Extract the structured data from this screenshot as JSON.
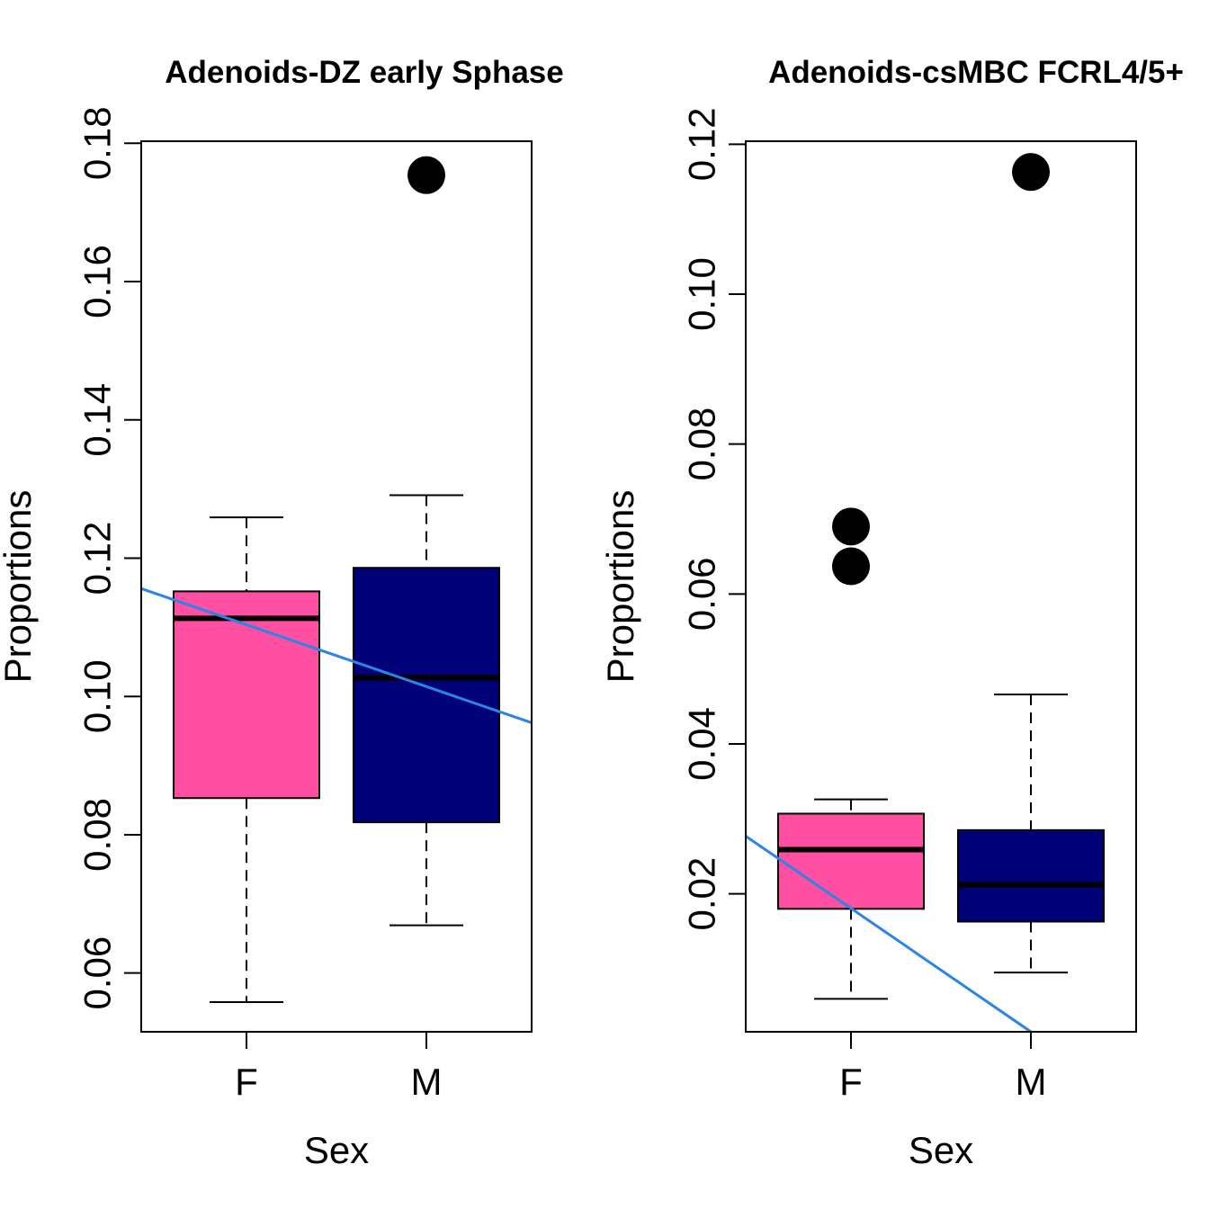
{
  "chart_data": [
    {
      "type": "boxplot",
      "title": "Adenoids-DZ early  Sphase",
      "xlabel": "Sex",
      "ylabel": "Proportions",
      "categories": [
        "F",
        "M"
      ],
      "ylim": [
        0.0515,
        0.1803
      ],
      "yticks": [
        0.06,
        0.08,
        0.1,
        0.12,
        0.14,
        0.16,
        0.18
      ],
      "ytick_labels": [
        "0.06",
        "0.08",
        "0.10",
        "0.12",
        "0.14",
        "0.16",
        "0.18"
      ],
      "boxes": [
        {
          "category": "F",
          "color": "#FF4FA3",
          "whisker_low": 0.0558,
          "q1": 0.0853,
          "median": 0.1113,
          "q3": 0.1152,
          "whisker_high": 0.1259,
          "outliers": []
        },
        {
          "category": "M",
          "color": "#000077",
          "whisker_low": 0.0669,
          "q1": 0.0818,
          "median": 0.1027,
          "q3": 0.1186,
          "whisker_high": 0.1291,
          "outliers": [
            0.1754
          ]
        }
      ],
      "trend_line": {
        "color": "#2B85E4",
        "y_at_left_edge": 0.1156,
        "y_at_right_edge": 0.0962
      }
    },
    {
      "type": "boxplot",
      "title": "Adenoids-csMBC FCRL4/5+",
      "xlabel": "Sex",
      "ylabel": "Proportions",
      "categories": [
        "F",
        "M"
      ],
      "ylim": [
        0.0016,
        0.1204
      ],
      "yticks": [
        0.02,
        0.04,
        0.06,
        0.08,
        0.1,
        0.12
      ],
      "ytick_labels": [
        "0.02",
        "0.04",
        "0.06",
        "0.08",
        "0.10",
        "0.12"
      ],
      "boxes": [
        {
          "category": "F",
          "color": "#FF4FA3",
          "whisker_low": 0.006,
          "q1": 0.018,
          "median": 0.0259,
          "q3": 0.0307,
          "whisker_high": 0.0326,
          "outliers": [
            0.069,
            0.0637
          ]
        },
        {
          "category": "M",
          "color": "#000077",
          "whisker_low": 0.0095,
          "q1": 0.0163,
          "median": 0.0212,
          "q3": 0.0285,
          "whisker_high": 0.0466,
          "outliers": [
            0.1163
          ]
        }
      ],
      "trend_line": {
        "color": "#2B85E4",
        "y_at_left_edge": 0.0277,
        "y_at_F": 0.0185,
        "y_at_M": 0.0016
      }
    }
  ]
}
